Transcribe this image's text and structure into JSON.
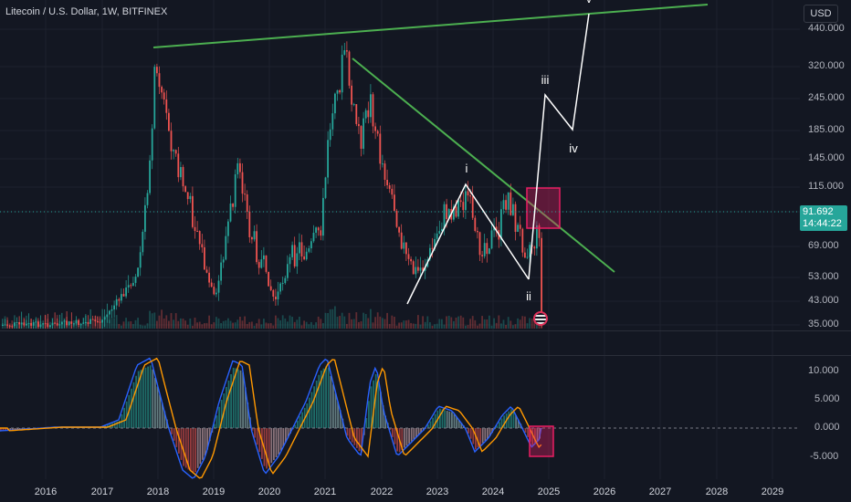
{
  "header": {
    "symbol_title": "Litecoin / U.S. Dollar, 1W, BITFINEX",
    "currency_button": "USD"
  },
  "price_tag": {
    "price": "91.692",
    "countdown": "14:44:22"
  },
  "price_axis": {
    "labels": [
      "440.000",
      "320.000",
      "245.000",
      "185.000",
      "145.000",
      "115.000",
      "69.000",
      "53.000",
      "43.000",
      "35.000"
    ]
  },
  "indicator_axis": {
    "labels": [
      "10.000",
      "5.000",
      "0.000",
      "-5.000"
    ]
  },
  "time_axis": {
    "years": [
      "2016",
      "2017",
      "2018",
      "2019",
      "2020",
      "2021",
      "2022",
      "2023",
      "2024",
      "2025",
      "2026",
      "2027",
      "2028",
      "2029"
    ]
  },
  "wave_labels": {
    "i": "i",
    "ii": "ii",
    "iii": "iii",
    "iv": "iv",
    "v": "v"
  },
  "colors": {
    "background": "#131722",
    "up_candle": "#26a69a",
    "down_candle": "#ef5350",
    "trendline": "#4caf50",
    "wave_path": "#ffffff",
    "highlight_box": "#e91e63",
    "macd_line": "#2962ff",
    "signal_line": "#ff9800",
    "price_tag": "#26a69a"
  },
  "icons": {
    "event_marker": "us-flag-icon"
  }
}
